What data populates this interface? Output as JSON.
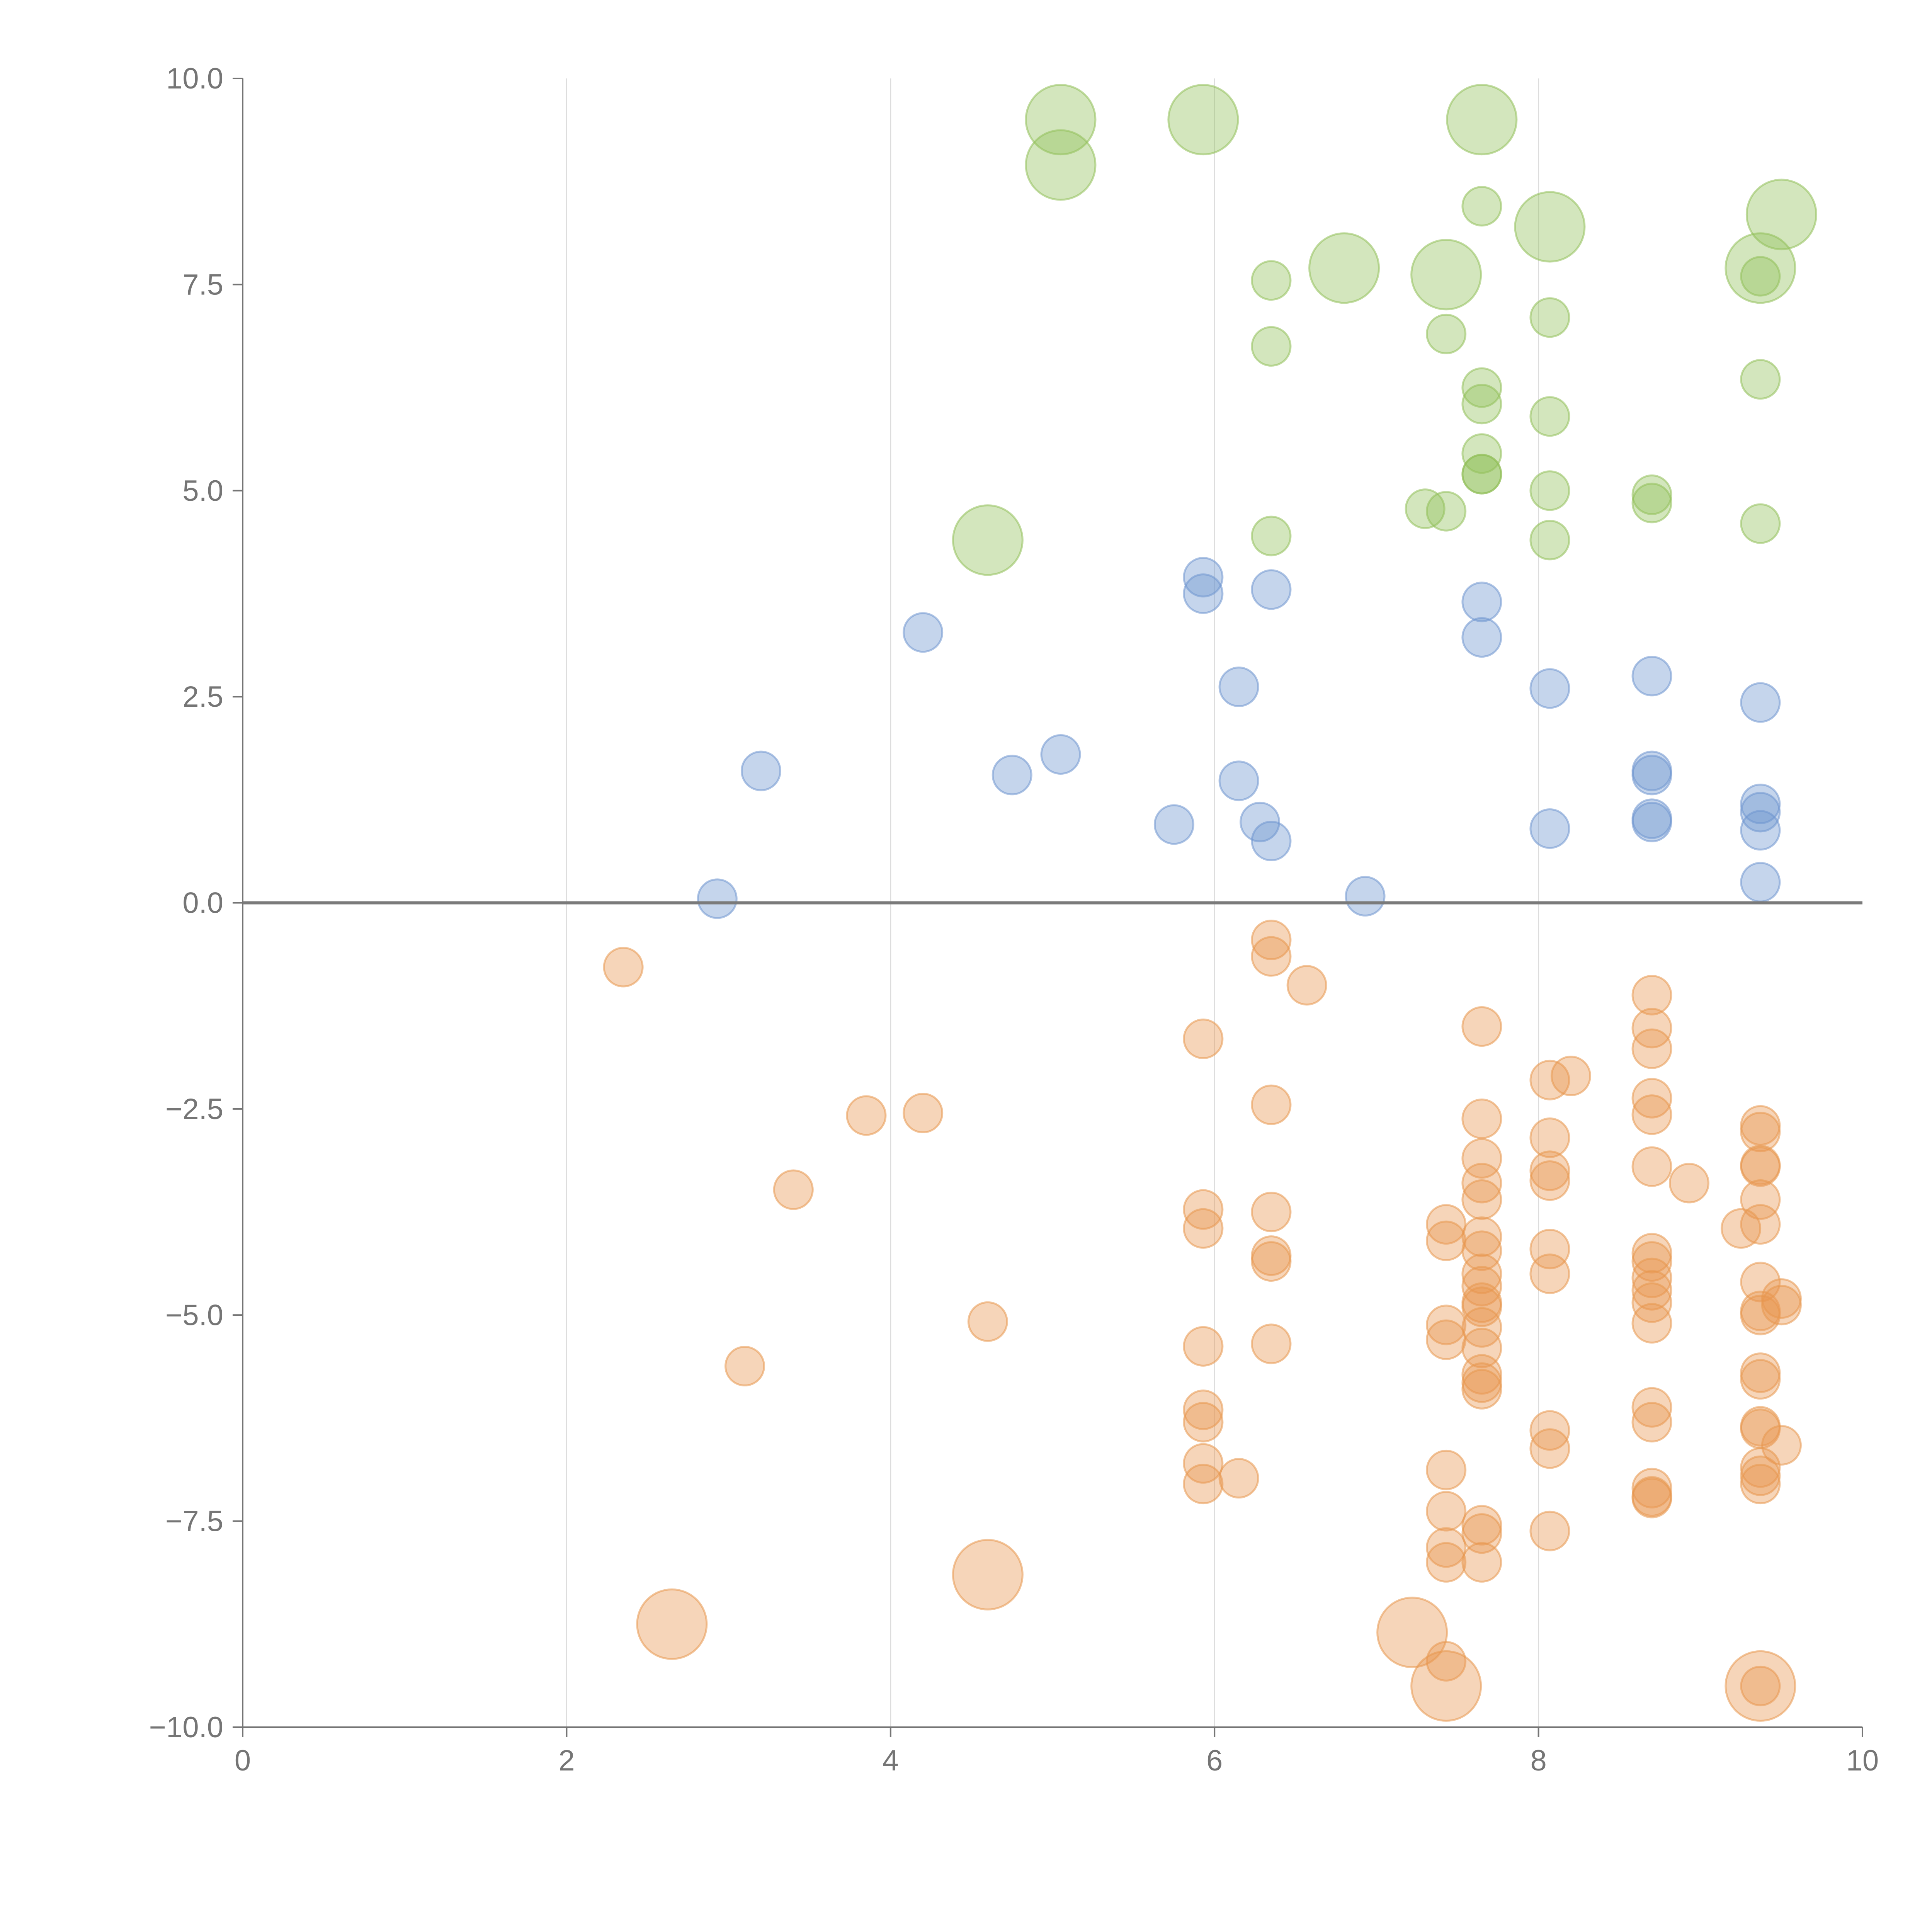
{
  "chart_data": {
    "type": "scatter",
    "title": "",
    "xlabel": "",
    "ylabel": "",
    "xlim": [
      0,
      10
    ],
    "ylim": [
      -10,
      10
    ],
    "x_ticks": [
      0,
      2,
      4,
      6,
      8,
      10
    ],
    "x_tick_labels": [
      "0",
      "2",
      "4",
      "6",
      "8",
      "10"
    ],
    "y_ticks": [
      10,
      7.5,
      5,
      2.5,
      0,
      -2.5,
      -5,
      -7.5,
      -10
    ],
    "y_tick_labels": [
      "10.0",
      "7.5",
      "5.0",
      "2.5",
      "0.0",
      "−2.5",
      "−5.0",
      "−7.5",
      "−10.0"
    ],
    "vertical_grid_at": [
      2,
      4,
      6,
      8
    ],
    "reference_line_y": 0,
    "bubble_size_note": "small = 1, large = 2",
    "series": [
      {
        "color": "#92c05a",
        "points": [
          [
            5.05,
            9.5,
            2
          ],
          [
            5.05,
            8.95,
            2
          ],
          [
            5.93,
            9.5,
            2
          ],
          [
            7.65,
            9.5,
            2
          ],
          [
            8.07,
            8.2,
            2
          ],
          [
            9.5,
            8.35,
            2
          ],
          [
            6.8,
            7.7,
            2
          ],
          [
            7.43,
            7.62,
            2
          ],
          [
            9.37,
            7.7,
            2
          ],
          [
            4.6,
            4.4,
            2
          ],
          [
            7.65,
            8.45,
            1
          ],
          [
            6.35,
            7.55,
            1
          ],
          [
            6.35,
            6.75,
            1
          ],
          [
            7.43,
            6.9,
            1
          ],
          [
            8.07,
            7.1,
            1
          ],
          [
            9.37,
            7.6,
            1
          ],
          [
            7.65,
            6.25,
            1
          ],
          [
            7.65,
            6.05,
            1
          ],
          [
            8.07,
            5.9,
            1
          ],
          [
            9.37,
            6.35,
            1
          ],
          [
            7.65,
            5.45,
            1
          ],
          [
            7.65,
            5.2,
            1
          ],
          [
            7.65,
            5.2,
            1
          ],
          [
            7.3,
            4.78,
            1
          ],
          [
            7.43,
            4.75,
            1
          ],
          [
            8.07,
            5.0,
            1
          ],
          [
            8.7,
            4.95,
            1
          ],
          [
            8.7,
            4.85,
            1
          ],
          [
            6.35,
            4.45,
            1
          ],
          [
            8.07,
            4.4,
            1
          ],
          [
            9.37,
            4.6,
            1
          ]
        ]
      },
      {
        "color": "#6f96cf",
        "points": [
          [
            5.93,
            3.95,
            1
          ],
          [
            5.93,
            3.75,
            1
          ],
          [
            6.35,
            3.8,
            1
          ],
          [
            4.2,
            3.28,
            1
          ],
          [
            7.65,
            3.65,
            1
          ],
          [
            7.65,
            3.22,
            1
          ],
          [
            6.15,
            2.62,
            1
          ],
          [
            8.07,
            2.6,
            1
          ],
          [
            8.7,
            2.75,
            1
          ],
          [
            9.37,
            2.43,
            1
          ],
          [
            3.2,
            1.6,
            1
          ],
          [
            4.75,
            1.55,
            1
          ],
          [
            5.05,
            1.8,
            1
          ],
          [
            6.15,
            1.48,
            1
          ],
          [
            5.75,
            0.95,
            1
          ],
          [
            6.28,
            0.98,
            1
          ],
          [
            6.35,
            0.75,
            1
          ],
          [
            8.07,
            0.9,
            1
          ],
          [
            8.7,
            1.6,
            1
          ],
          [
            8.7,
            1.55,
            1
          ],
          [
            8.7,
            1.02,
            1
          ],
          [
            8.7,
            0.98,
            1
          ],
          [
            9.37,
            1.2,
            1
          ],
          [
            9.37,
            1.1,
            1
          ],
          [
            9.37,
            0.88,
            1
          ],
          [
            9.37,
            0.25,
            1
          ],
          [
            2.93,
            0.05,
            1
          ],
          [
            6.93,
            0.08,
            1
          ]
        ]
      },
      {
        "color": "#e8974f",
        "points": [
          [
            2.35,
            -0.78,
            1
          ],
          [
            6.35,
            -0.45,
            1
          ],
          [
            6.35,
            -0.65,
            1
          ],
          [
            6.57,
            -1.0,
            1
          ],
          [
            5.93,
            -1.65,
            1
          ],
          [
            7.65,
            -1.5,
            1
          ],
          [
            8.7,
            -1.12,
            1
          ],
          [
            8.7,
            -1.52,
            1
          ],
          [
            8.7,
            -1.77,
            1
          ],
          [
            8.07,
            -2.15,
            1
          ],
          [
            8.2,
            -2.1,
            1
          ],
          [
            3.85,
            -2.58,
            1
          ],
          [
            4.2,
            -2.55,
            1
          ],
          [
            6.35,
            -2.45,
            1
          ],
          [
            7.65,
            -2.62,
            1
          ],
          [
            8.07,
            -2.85,
            1
          ],
          [
            8.7,
            -2.37,
            1
          ],
          [
            8.7,
            -2.57,
            1
          ],
          [
            9.37,
            -2.7,
            1
          ],
          [
            9.37,
            -2.78,
            1
          ],
          [
            3.4,
            -3.48,
            1
          ],
          [
            7.65,
            -3.1,
            1
          ],
          [
            7.65,
            -3.4,
            1
          ],
          [
            7.65,
            -3.6,
            1
          ],
          [
            8.07,
            -3.25,
            1
          ],
          [
            8.07,
            -3.37,
            1
          ],
          [
            8.7,
            -3.2,
            1
          ],
          [
            8.93,
            -3.4,
            1
          ],
          [
            9.37,
            -3.18,
            1
          ],
          [
            9.37,
            -3.2,
            1
          ],
          [
            9.37,
            -3.6,
            1
          ],
          [
            9.37,
            -3.9,
            1
          ],
          [
            9.25,
            -3.95,
            1
          ],
          [
            5.93,
            -3.72,
            1
          ],
          [
            5.93,
            -3.95,
            1
          ],
          [
            6.35,
            -3.75,
            1
          ],
          [
            6.35,
            -4.28,
            1
          ],
          [
            6.35,
            -4.35,
            1
          ],
          [
            7.43,
            -3.9,
            1
          ],
          [
            7.43,
            -4.1,
            1
          ],
          [
            7.65,
            -4.05,
            1
          ],
          [
            7.65,
            -4.22,
            1
          ],
          [
            7.65,
            -4.5,
            1
          ],
          [
            7.65,
            -4.65,
            1
          ],
          [
            7.65,
            -4.85,
            1
          ],
          [
            7.65,
            -4.9,
            1
          ],
          [
            8.07,
            -4.2,
            1
          ],
          [
            8.07,
            -4.5,
            1
          ],
          [
            8.7,
            -4.25,
            1
          ],
          [
            8.7,
            -4.35,
            1
          ],
          [
            8.7,
            -4.55,
            1
          ],
          [
            8.7,
            -4.7,
            1
          ],
          [
            8.7,
            -4.85,
            1
          ],
          [
            9.37,
            -4.6,
            1
          ],
          [
            9.37,
            -4.95,
            1
          ],
          [
            9.37,
            -5.0,
            1
          ],
          [
            9.5,
            -4.8,
            1
          ],
          [
            9.5,
            -4.88,
            1
          ],
          [
            4.6,
            -5.08,
            1
          ],
          [
            3.1,
            -5.62,
            1
          ],
          [
            5.93,
            -5.38,
            1
          ],
          [
            6.35,
            -5.35,
            1
          ],
          [
            7.43,
            -5.12,
            1
          ],
          [
            7.43,
            -5.3,
            1
          ],
          [
            7.65,
            -5.15,
            1
          ],
          [
            7.65,
            -5.4,
            1
          ],
          [
            7.65,
            -5.72,
            1
          ],
          [
            7.65,
            -5.82,
            1
          ],
          [
            7.65,
            -5.9,
            1
          ],
          [
            8.7,
            -5.1,
            1
          ],
          [
            9.37,
            -5.7,
            1
          ],
          [
            9.37,
            -5.78,
            1
          ],
          [
            5.93,
            -6.15,
            1
          ],
          [
            5.93,
            -6.3,
            1
          ],
          [
            8.07,
            -6.4,
            1
          ],
          [
            8.07,
            -6.62,
            1
          ],
          [
            8.7,
            -6.12,
            1
          ],
          [
            8.7,
            -6.3,
            1
          ],
          [
            9.37,
            -6.35,
            1
          ],
          [
            9.37,
            -6.38,
            1
          ],
          [
            9.5,
            -6.58,
            1
          ],
          [
            9.37,
            -6.85,
            1
          ],
          [
            9.37,
            -6.95,
            1
          ],
          [
            9.37,
            -7.05,
            1
          ],
          [
            5.93,
            -6.8,
            1
          ],
          [
            5.93,
            -7.05,
            1
          ],
          [
            6.15,
            -6.98,
            1
          ],
          [
            7.43,
            -6.88,
            1
          ],
          [
            7.43,
            -7.38,
            1
          ],
          [
            7.43,
            -7.82,
            1
          ],
          [
            7.43,
            -8.0,
            1
          ],
          [
            7.65,
            -7.55,
            1
          ],
          [
            7.65,
            -7.65,
            1
          ],
          [
            7.65,
            -8.0,
            1
          ],
          [
            8.07,
            -7.62,
            1
          ],
          [
            8.7,
            -7.1,
            1
          ],
          [
            8.7,
            -7.2,
            1
          ],
          [
            8.7,
            -7.22,
            1
          ],
          [
            7.43,
            -9.2,
            1
          ],
          [
            9.37,
            -9.5,
            1
          ],
          [
            2.65,
            -8.75,
            2
          ],
          [
            4.6,
            -8.15,
            2
          ],
          [
            7.22,
            -8.85,
            2
          ],
          [
            7.43,
            -9.5,
            2
          ],
          [
            9.37,
            -9.5,
            2
          ]
        ]
      }
    ]
  }
}
